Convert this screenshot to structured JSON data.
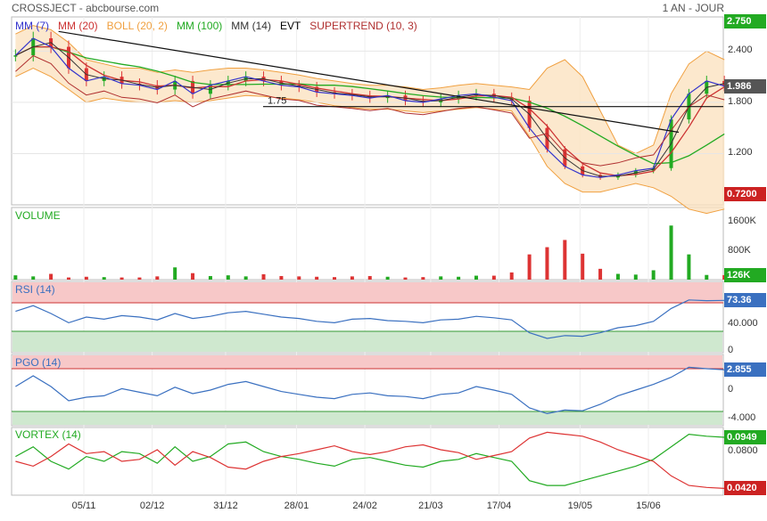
{
  "header": {
    "title": "CROSSJECT - abcbourse.com",
    "period": "1 AN - JOUR"
  },
  "colors": {
    "mm7": "#3333cc",
    "mm20": "#cc3333",
    "boll": "#f0a040",
    "bollFill": "#fbe2c0",
    "mm100": "#22aa22",
    "mm14": "#333333",
    "evt": "#000000",
    "supertrend": "#b03030",
    "up": "#22aa22",
    "down": "#dd3333",
    "rsi": "#3a70c0",
    "vortexPlus": "#22aa22",
    "vortexMinus": "#dd3333",
    "zoneHigh": "#f7c8c8",
    "zoneLow": "#cfe8cf"
  },
  "chart_data": [
    {
      "type": "candlestick",
      "name": "price",
      "legend": [
        {
          "label": "MM (7)",
          "color": "#3333cc"
        },
        {
          "label": "MM (20)",
          "color": "#cc3333"
        },
        {
          "label": "BOLL (20, 2)",
          "color": "#f0a040"
        },
        {
          "label": "MM (100)",
          "color": "#22aa22"
        },
        {
          "label": "MM (14)",
          "color": "#333333"
        },
        {
          "label": "EVT",
          "color": "#000000"
        },
        {
          "label": "SUPERTREND (10, 3)",
          "color": "#b03030"
        }
      ],
      "y_ticks": [
        "2.400",
        "1.800",
        "1.200"
      ],
      "ylim": [
        0.6,
        2.8
      ],
      "tags": [
        {
          "text": "2.750",
          "color": "#22aa22",
          "value": 2.75
        },
        {
          "text": "1.986",
          "color": "#555555",
          "value": 1.986
        },
        {
          "text": "0.7200",
          "color": "#cc2222",
          "value": 0.72
        }
      ],
      "annotation": "1.75",
      "horizontal_level": 1.75,
      "trendline": {
        "from": [
          "2023-10-26",
          2.63
        ],
        "to": [
          "2024-06-27",
          1.45
        ]
      },
      "closes_weekly": [
        2.35,
        2.55,
        2.45,
        2.2,
        2.05,
        2.1,
        2.02,
        2.0,
        1.95,
        2.05,
        1.9,
        2.0,
        2.05,
        2.1,
        2.05,
        2.0,
        1.98,
        1.92,
        1.9,
        1.88,
        1.85,
        1.88,
        1.82,
        1.8,
        1.84,
        1.88,
        1.9,
        1.86,
        1.82,
        1.5,
        1.25,
        1.05,
        0.95,
        0.92,
        0.95,
        1.0,
        1.03,
        1.6,
        1.9,
        2.05,
        1.99
      ],
      "dates_start": "2023-10-09",
      "bollinger_upper_weekly": [
        2.6,
        2.7,
        2.65,
        2.5,
        2.3,
        2.25,
        2.2,
        2.2,
        2.15,
        2.18,
        2.15,
        2.18,
        2.2,
        2.2,
        2.18,
        2.15,
        2.12,
        2.08,
        2.05,
        2.02,
        2.0,
        2.0,
        1.98,
        1.95,
        1.97,
        2.0,
        2.02,
        2.0,
        1.98,
        1.95,
        2.2,
        2.3,
        2.1,
        1.7,
        1.3,
        1.2,
        1.3,
        1.9,
        2.25,
        2.4,
        2.3
      ],
      "bollinger_lower_weekly": [
        2.1,
        2.2,
        2.1,
        1.95,
        1.8,
        1.85,
        1.82,
        1.8,
        1.8,
        1.82,
        1.8,
        1.82,
        1.85,
        1.88,
        1.87,
        1.85,
        1.83,
        1.8,
        1.76,
        1.74,
        1.72,
        1.72,
        1.7,
        1.68,
        1.7,
        1.72,
        1.74,
        1.72,
        1.7,
        1.4,
        1.05,
        0.85,
        0.75,
        0.75,
        0.8,
        0.85,
        0.8,
        0.7,
        0.55,
        0.5,
        0.55
      ]
    },
    {
      "type": "bar",
      "name": "volume",
      "title": "VOLUME",
      "y_ticks": [
        "1600K",
        "800K"
      ],
      "ylim": [
        0,
        2000
      ],
      "unit": "K",
      "tag": {
        "text": "126K",
        "color": "#22aa22",
        "value": 126
      },
      "values_weekly": [
        120,
        90,
        160,
        60,
        80,
        70,
        60,
        60,
        90,
        340,
        180,
        100,
        120,
        90,
        150,
        100,
        90,
        80,
        70,
        90,
        100,
        80,
        60,
        70,
        90,
        80,
        110,
        110,
        200,
        700,
        900,
        1100,
        720,
        300,
        160,
        140,
        260,
        1500,
        700,
        130,
        126
      ]
    },
    {
      "type": "line",
      "name": "rsi",
      "title": "RSI (14)",
      "y_ticks": [
        "40.000",
        "0"
      ],
      "ylim": [
        0,
        100
      ],
      "zones": {
        "high": 70,
        "low": 30
      },
      "tag": {
        "text": "73.36",
        "color": "#3a70c0",
        "value": 73.36
      },
      "values_weekly": [
        58,
        66,
        55,
        42,
        50,
        47,
        52,
        50,
        46,
        55,
        48,
        51,
        56,
        58,
        54,
        50,
        48,
        44,
        42,
        47,
        48,
        45,
        44,
        42,
        46,
        47,
        51,
        49,
        46,
        28,
        20,
        24,
        23,
        28,
        35,
        38,
        44,
        62,
        74,
        73,
        73.36
      ]
    },
    {
      "type": "line",
      "name": "pgo",
      "title": "PGO (14)",
      "y_ticks": [
        "0",
        "-4.000"
      ],
      "ylim": [
        -5,
        5
      ],
      "zones": {
        "high": 3,
        "low": -3
      },
      "tag": {
        "text": "2.855",
        "color": "#3a70c0",
        "value": 2.855
      },
      "values_weekly": [
        0.5,
        2.0,
        0.5,
        -1.5,
        -1.0,
        -0.8,
        0.2,
        -0.3,
        -0.8,
        0.4,
        -0.5,
        0.0,
        0.8,
        1.2,
        0.5,
        -0.2,
        -0.6,
        -1.0,
        -1.2,
        -0.6,
        -0.4,
        -0.8,
        -0.9,
        -1.2,
        -0.6,
        -0.4,
        0.5,
        0.0,
        -0.6,
        -2.5,
        -3.3,
        -2.8,
        -2.9,
        -2.0,
        -0.8,
        0.0,
        0.8,
        1.8,
        3.2,
        3.0,
        2.855
      ]
    },
    {
      "type": "line",
      "name": "vortex",
      "title": "VORTEX (14)",
      "y_ticks": [
        "0.0800"
      ],
      "tags": [
        {
          "text": "0.0949",
          "color": "#22aa22",
          "value": 0.0949
        },
        {
          "text": "0.0420",
          "color": "#cc2222",
          "value": 0.042
        }
      ],
      "ylim": [
        0.035,
        0.105
      ],
      "series": [
        {
          "name": "VI+",
          "values_weekly": [
            0.075,
            0.085,
            0.07,
            0.062,
            0.075,
            0.07,
            0.08,
            0.078,
            0.068,
            0.085,
            0.07,
            0.075,
            0.088,
            0.09,
            0.08,
            0.075,
            0.072,
            0.068,
            0.065,
            0.072,
            0.074,
            0.07,
            0.066,
            0.064,
            0.07,
            0.072,
            0.078,
            0.074,
            0.07,
            0.05,
            0.045,
            0.045,
            0.05,
            0.055,
            0.06,
            0.065,
            0.072,
            0.085,
            0.098,
            0.096,
            0.0949
          ]
        },
        {
          "name": "VI-",
          "values_weekly": [
            0.07,
            0.065,
            0.075,
            0.088,
            0.078,
            0.08,
            0.07,
            0.072,
            0.082,
            0.066,
            0.08,
            0.074,
            0.064,
            0.062,
            0.07,
            0.075,
            0.078,
            0.082,
            0.086,
            0.08,
            0.077,
            0.08,
            0.085,
            0.087,
            0.082,
            0.079,
            0.072,
            0.076,
            0.08,
            0.094,
            0.1,
            0.098,
            0.096,
            0.09,
            0.082,
            0.076,
            0.07,
            0.055,
            0.045,
            0.043,
            0.042
          ]
        }
      ]
    }
  ],
  "x_axis": {
    "labels": [
      "05/11",
      "02/12",
      "31/12",
      "28/01",
      "24/02",
      "21/03",
      "17/04",
      "19/05",
      "15/06"
    ],
    "label_dates": [
      "2023-11-05",
      "2023-12-02",
      "2023-12-31",
      "2024-01-28",
      "2024-02-24",
      "2024-03-21",
      "2024-04-17",
      "2024-05-19",
      "2024-06-15"
    ]
  }
}
